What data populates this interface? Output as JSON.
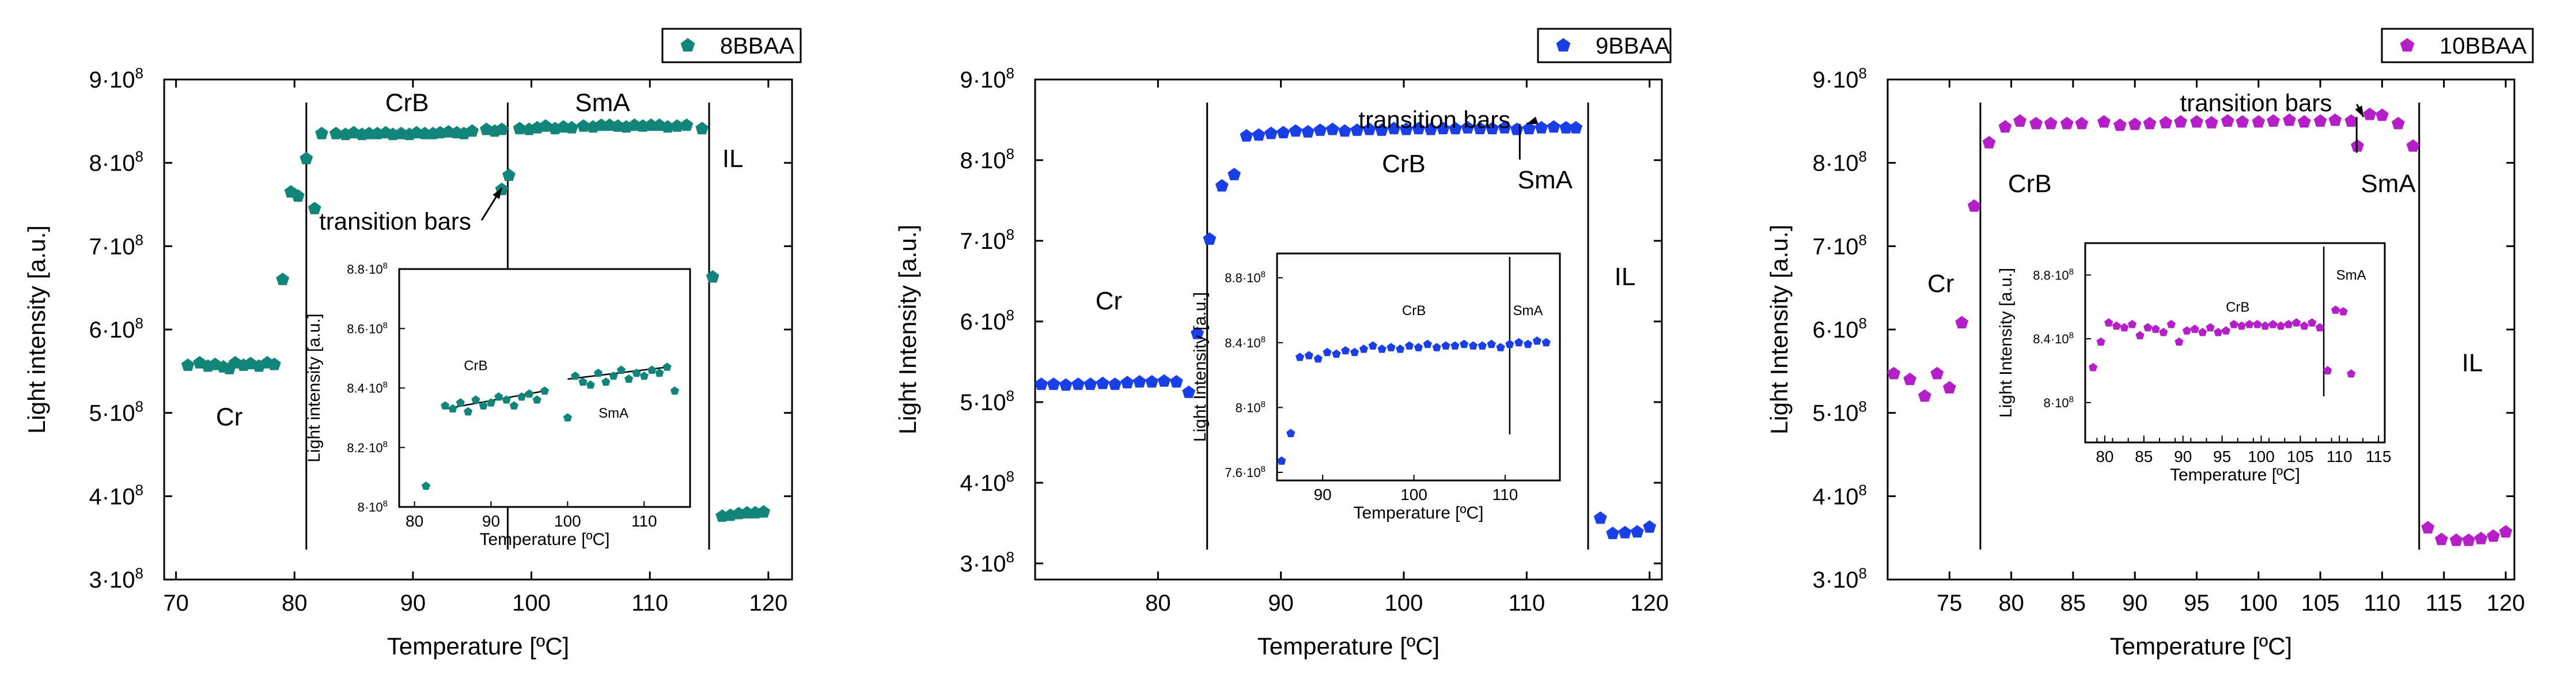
{
  "chart_data": [
    {
      "type": "scatter",
      "title": "",
      "xlabel": "Temperature [ºC]",
      "ylabel": "Light intensity [a.u.]",
      "xlim": [
        69,
        122
      ],
      "ylim": [
        3.0,
        9.0
      ],
      "y_unit": "10^8",
      "xticks": [
        70,
        80,
        90,
        100,
        110,
        120
      ],
      "xtick_labels": [
        "70",
        "80",
        "90",
        "100",
        "110",
        "120"
      ],
      "yticks": [
        3,
        4,
        5,
        6,
        7,
        8,
        9
      ],
      "ytick_labels": [
        "3·10",
        "4·10",
        "5·10",
        "6·10",
        "7·10",
        "8·10",
        "9·10"
      ],
      "ytick_exponent": "8",
      "legend": {
        "label": "8BBAA",
        "placement": "top-right",
        "marker": "pentagon"
      },
      "color": "#12857b",
      "phase_lines": [
        81,
        98,
        115
      ],
      "phase_labels": [
        {
          "text": "Cr",
          "x": 74.5,
          "y": 4.85
        },
        {
          "text": "CrB",
          "x": 89.5,
          "y": 8.62
        },
        {
          "text": "SmA",
          "x": 106,
          "y": 8.62
        },
        {
          "text": "IL",
          "x": 117,
          "y": 7.95
        }
      ],
      "annotation": {
        "text": "transition bars",
        "x": 88.5,
        "y": 7.2,
        "arrow_to_x": 97.5,
        "arrow_to_y": 7.7
      },
      "series": [
        {
          "name": "8BBAA",
          "x": [
            71,
            72,
            72.7,
            73.3,
            74,
            74.5,
            75,
            75.7,
            76.3,
            77,
            77.7,
            78.3,
            79,
            79.7,
            80.3,
            81,
            81.7,
            82.3,
            83.5,
            84.3,
            85,
            85.7,
            86.3,
            87,
            87.7,
            88.3,
            89,
            89.7,
            90.3,
            91,
            91.7,
            92.3,
            93,
            93.7,
            94.3,
            95,
            96.2,
            96.9,
            97.5,
            97.5,
            98.1,
            99,
            99.8,
            100.5,
            101.2,
            102,
            102.7,
            103.4,
            104.4,
            105.2,
            105.9,
            106.6,
            107.3,
            108,
            108.7,
            109.4,
            110.1,
            110.8,
            111.5,
            112.3,
            113.1,
            114.4,
            115.3,
            116.1,
            116.8,
            117.5,
            118.2,
            118.9,
            119.6
          ],
          "y": [
            5.57,
            5.6,
            5.56,
            5.58,
            5.55,
            5.53,
            5.6,
            5.57,
            5.59,
            5.56,
            5.6,
            5.58,
            6.6,
            7.65,
            7.6,
            8.05,
            7.45,
            8.35,
            8.35,
            8.34,
            8.36,
            8.34,
            8.35,
            8.35,
            8.36,
            8.34,
            8.35,
            8.34,
            8.36,
            8.35,
            8.35,
            8.36,
            8.37,
            8.36,
            8.35,
            8.38,
            8.4,
            8.38,
            8.4,
            7.68,
            7.85,
            8.41,
            8.4,
            8.42,
            8.44,
            8.41,
            8.43,
            8.42,
            8.44,
            8.43,
            8.45,
            8.45,
            8.44,
            8.43,
            8.45,
            8.44,
            8.45,
            8.45,
            8.43,
            8.44,
            8.45,
            8.41,
            6.63,
            3.76,
            3.77,
            3.79,
            3.8,
            3.8,
            3.81
          ]
        }
      ],
      "inset": {
        "xlabel": "Temperature [ºC]",
        "ylabel": "Light intensity [a.u.]",
        "xlim": [
          78,
          116
        ],
        "ylim": [
          8.0,
          8.8
        ],
        "xticks": [
          80,
          90,
          100,
          110
        ],
        "xtick_labels": [
          "80",
          "90",
          "100",
          "110"
        ],
        "yticks": [
          8.0,
          8.2,
          8.4,
          8.6,
          8.8
        ],
        "ytick_labels": [
          "8·10",
          "8.2·10",
          "8.4·10",
          "8.6·10",
          "8.8·10"
        ],
        "phase_labels": [
          {
            "text": "CrB",
            "x": 88,
            "y": 8.46
          },
          {
            "text": "SmA",
            "x": 106,
            "y": 8.3
          }
        ],
        "fit_lines": [
          {
            "x1": 84,
            "y1": 8.33,
            "x2": 97,
            "y2": 8.39
          },
          {
            "x1": 100,
            "y1": 8.43,
            "x2": 113,
            "y2": 8.47
          }
        ],
        "x": [
          81.5,
          84,
          85,
          86,
          87,
          88,
          89,
          90,
          91,
          92,
          93,
          94,
          95,
          96,
          97,
          100,
          101,
          102,
          103,
          104,
          105,
          106,
          107,
          108,
          109,
          110,
          111,
          112,
          113,
          114
        ],
        "y": [
          8.07,
          8.34,
          8.33,
          8.35,
          8.32,
          8.36,
          8.34,
          8.35,
          8.37,
          8.36,
          8.34,
          8.37,
          8.38,
          8.36,
          8.39,
          8.3,
          8.44,
          8.42,
          8.41,
          8.45,
          8.42,
          8.44,
          8.46,
          8.43,
          8.45,
          8.44,
          8.46,
          8.45,
          8.47,
          8.39
        ]
      }
    },
    {
      "type": "scatter",
      "title": "",
      "xlabel": "Temperature [ºC]",
      "ylabel": "Light Intensity [a.u.]",
      "xlim": [
        70,
        121
      ],
      "ylim": [
        2.8,
        9.0
      ],
      "y_unit": "10^8",
      "xticks": [
        80,
        90,
        100,
        110,
        120
      ],
      "xtick_labels": [
        "80",
        "90",
        "100",
        "110",
        "120"
      ],
      "yticks": [
        3,
        4,
        5,
        6,
        7,
        8,
        9
      ],
      "ytick_labels": [
        "3·10",
        "4·10",
        "5·10",
        "6·10",
        "7·10",
        "8·10",
        "9·10"
      ],
      "ytick_exponent": "8",
      "legend": {
        "label": "9BBAA",
        "placement": "top-right",
        "marker": "pentagon"
      },
      "color": "#1a3fe6",
      "phase_lines": [
        84,
        115
      ],
      "phase_labels": [
        {
          "text": "Cr",
          "x": 76,
          "y": 6.15
        },
        {
          "text": "CrB",
          "x": 100,
          "y": 7.85
        },
        {
          "text": "SmA",
          "x": 111.5,
          "y": 7.65
        },
        {
          "text": "IL",
          "x": 118,
          "y": 6.45
        }
      ],
      "annotation": {
        "text": "transition bars",
        "x": 102.5,
        "y": 8.4,
        "arrow_to_x": 110,
        "arrow_to_y": 8.45
      },
      "series": [
        {
          "name": "9BBAA",
          "x": [
            70.5,
            71.5,
            72.5,
            73.5,
            74.5,
            75.5,
            76.5,
            77.5,
            78.5,
            79.5,
            80.5,
            81.5,
            82.5,
            83.2,
            84.2,
            85.2,
            86.2,
            87.2,
            88.2,
            89.2,
            90.2,
            91.2,
            92.2,
            93.2,
            94.2,
            95.2,
            96.2,
            97.2,
            98.2,
            99.2,
            100.2,
            101.2,
            102.2,
            103.2,
            104.2,
            105.2,
            106.2,
            107.2,
            108.2,
            109.2,
            110.2,
            111.2,
            112.2,
            113.2,
            114,
            116,
            117,
            118,
            119,
            120
          ],
          "y": [
            5.22,
            5.22,
            5.21,
            5.22,
            5.22,
            5.23,
            5.22,
            5.24,
            5.25,
            5.25,
            5.26,
            5.25,
            5.12,
            5.85,
            7.02,
            7.68,
            7.82,
            8.3,
            8.31,
            8.33,
            8.34,
            8.36,
            8.35,
            8.37,
            8.38,
            8.36,
            8.37,
            8.38,
            8.37,
            8.39,
            8.38,
            8.39,
            8.38,
            8.39,
            8.39,
            8.4,
            8.39,
            8.39,
            8.4,
            8.38,
            8.39,
            8.4,
            8.41,
            8.4,
            8.4,
            3.56,
            3.37,
            3.38,
            3.39,
            3.45
          ]
        }
      ],
      "inset": {
        "xlabel": "Temperature [ºC]",
        "ylabel": "Light Intensity [a.u.]",
        "xlim": [
          85,
          116
        ],
        "ylim": [
          7.55,
          8.95
        ],
        "xticks": [
          90,
          100,
          110
        ],
        "xtick_labels": [
          "90",
          "100",
          "110"
        ],
        "yticks": [
          7.6,
          8.0,
          8.4,
          8.8
        ],
        "ytick_labels": [
          "7.6·10",
          "8·10",
          "8.4·10",
          "8.8·10"
        ],
        "phase_labels": [
          {
            "text": "CrB",
            "x": 100,
            "y": 8.57
          },
          {
            "text": "SmA",
            "x": 112.5,
            "y": 8.57
          }
        ],
        "vline": 110.5,
        "x": [
          85.5,
          86.5,
          87.5,
          88.5,
          89.5,
          90.5,
          91.5,
          92.5,
          93.5,
          94.5,
          95.5,
          96.5,
          97.5,
          98.5,
          99.5,
          100.5,
          101.5,
          102.5,
          103.5,
          104.5,
          105.5,
          106.5,
          107.5,
          108.5,
          109.5,
          110.5,
          111.5,
          112.5,
          113.5,
          114.5
        ],
        "y": [
          7.67,
          7.84,
          8.31,
          8.32,
          8.3,
          8.34,
          8.33,
          8.35,
          8.34,
          8.36,
          8.38,
          8.36,
          8.37,
          8.36,
          8.38,
          8.37,
          8.39,
          8.37,
          8.38,
          8.38,
          8.39,
          8.38,
          8.38,
          8.39,
          8.37,
          8.39,
          8.4,
          8.39,
          8.41,
          8.4
        ]
      }
    },
    {
      "type": "scatter",
      "title": "",
      "xlabel": "Temperature [ºC]",
      "ylabel": "Light Intensity [a.u.]",
      "xlim": [
        70,
        120.7
      ],
      "ylim": [
        3.0,
        9.0
      ],
      "y_unit": "10^8",
      "xticks": [
        75,
        80,
        85,
        90,
        95,
        100,
        105,
        110,
        115,
        120
      ],
      "xtick_labels": [
        "75",
        "80",
        "85",
        "90",
        "95",
        "100",
        "105",
        "110",
        "115",
        "120"
      ],
      "yticks": [
        3,
        4,
        5,
        6,
        7,
        8,
        9
      ],
      "ytick_labels": [
        "3·10",
        "4·10",
        "5·10",
        "6·10",
        "7·10",
        "8·10",
        "9·10"
      ],
      "ytick_exponent": "8",
      "legend": {
        "label": "10BBAA",
        "placement": "top-right",
        "marker": "pentagon"
      },
      "color": "#b51fc7",
      "phase_lines": [
        77.5,
        113
      ],
      "phase_labels": [
        {
          "text": "Cr",
          "x": 74.3,
          "y": 6.45
        },
        {
          "text": "CrB",
          "x": 81.5,
          "y": 7.65
        },
        {
          "text": "SmA",
          "x": 110.5,
          "y": 7.65
        },
        {
          "text": "IL",
          "x": 117.3,
          "y": 5.5
        }
      ],
      "annotation": {
        "text": "transition bars",
        "x": 99.8,
        "y": 8.62,
        "arrow_to_x": 108.5,
        "arrow_to_y": 8.55
      },
      "series": [
        {
          "name": "10BBAA",
          "x": [
            70.5,
            71.8,
            73,
            74,
            75,
            76,
            77,
            78.2,
            79.5,
            80.7,
            82,
            83.2,
            84.5,
            85.7,
            87.5,
            88.8,
            90,
            91.2,
            92.5,
            93.7,
            95,
            96.2,
            97.5,
            98.7,
            100,
            101.2,
            102.5,
            103.7,
            105,
            106.2,
            107.5,
            108,
            109,
            110,
            111.3,
            112.5,
            113.7,
            114.8,
            116,
            117,
            118,
            119,
            120
          ],
          "y": [
            5.47,
            5.4,
            5.2,
            5.47,
            5.3,
            6.08,
            7.48,
            8.24,
            8.43,
            8.5,
            8.47,
            8.47,
            8.47,
            8.47,
            8.49,
            8.45,
            8.46,
            8.47,
            8.48,
            8.49,
            8.49,
            8.48,
            8.5,
            8.49,
            8.49,
            8.5,
            8.51,
            8.49,
            8.5,
            8.51,
            8.5,
            8.2,
            8.58,
            8.57,
            8.47,
            8.2,
            3.62,
            3.48,
            3.47,
            3.47,
            3.49,
            3.52,
            3.57
          ]
        }
      ],
      "inset": {
        "xlabel": "Temperature [ºC]",
        "ylabel": "Light Intensity [a.u.]",
        "xlim": [
          77.5,
          115.8
        ],
        "ylim": [
          7.75,
          9.0
        ],
        "xticks": [
          79,
          81,
          83,
          85,
          87,
          89,
          91,
          93,
          95,
          97,
          99,
          101,
          103,
          105,
          107,
          109,
          111,
          113,
          115
        ],
        "xtick_labels": [
          "",
          "80",
          "",
          "85",
          "",
          "90",
          "",
          "95",
          "",
          "100",
          "",
          "105",
          "",
          "110",
          "",
          "115",
          "",
          "",
          ""
        ],
        "xtick_label_values": [
          80,
          85,
          90,
          95,
          100,
          105,
          110,
          115
        ],
        "xtick_label_texts": [
          "80",
          "85",
          "90",
          "95",
          "100",
          "105",
          "110",
          "115"
        ],
        "yticks": [
          8.0,
          8.4,
          8.8
        ],
        "ytick_labels": [
          "8·10",
          "8.4·10",
          "8.8·10"
        ],
        "phase_labels": [
          {
            "text": "CrB",
            "x": 97,
            "y": 8.57
          },
          {
            "text": "SmA",
            "x": 111.5,
            "y": 8.77
          }
        ],
        "vline": 108,
        "x": [
          78.5,
          79.5,
          80.5,
          81.5,
          82.5,
          83.5,
          84.5,
          85.5,
          86.5,
          87.5,
          88.5,
          89.5,
          90.5,
          91.5,
          92.5,
          93.5,
          94.5,
          95.5,
          96.5,
          97.5,
          98.5,
          99.5,
          100.5,
          101.5,
          102.5,
          103.5,
          104.5,
          105.5,
          106.5,
          107.5,
          108.5,
          109.5,
          110.5,
          111.5
        ],
        "y": [
          8.22,
          8.38,
          8.5,
          8.48,
          8.47,
          8.49,
          8.42,
          8.47,
          8.46,
          8.44,
          8.49,
          8.38,
          8.45,
          8.46,
          8.44,
          8.47,
          8.44,
          8.45,
          8.49,
          8.48,
          8.49,
          8.49,
          8.48,
          8.49,
          8.48,
          8.49,
          8.5,
          8.48,
          8.5,
          8.47,
          8.2,
          8.58,
          8.57,
          8.18
        ]
      }
    }
  ]
}
